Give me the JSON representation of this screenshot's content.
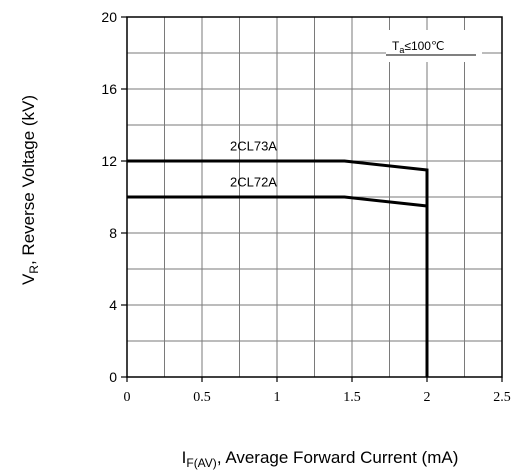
{
  "chart_data": {
    "type": "line",
    "xlim": [
      0,
      2.5
    ],
    "ylim": [
      0,
      20
    ],
    "x_ticks": [
      {
        "value": 0,
        "label": "0"
      },
      {
        "value": 0.5,
        "label": "0.5"
      },
      {
        "value": 1,
        "label": "1"
      },
      {
        "value": 1.5,
        "label": "1.5"
      },
      {
        "value": 2,
        "label": "2"
      },
      {
        "value": 2.5,
        "label": "2.5"
      }
    ],
    "y_ticks": [
      {
        "value": 0,
        "label": "0"
      },
      {
        "value": 4,
        "label": "4"
      },
      {
        "value": 8,
        "label": "8"
      },
      {
        "value": 12,
        "label": "12"
      },
      {
        "value": 16,
        "label": "16"
      },
      {
        "value": 20,
        "label": "20"
      }
    ],
    "xlabel": {
      "main": "I",
      "sub": "F(AV)",
      "rest": ", Average Forward Current (mA)"
    },
    "ylabel": {
      "main": "V",
      "sub": "R",
      "rest": ", Reverse Voltage (kV)"
    },
    "grid": true,
    "minor_grid_x": 0.25,
    "minor_grid_y": 2,
    "annotation": {
      "main": "T",
      "sub": "a",
      "rest": "≤100℃"
    },
    "series": [
      {
        "name": "2CL73A",
        "points": [
          [
            0,
            12
          ],
          [
            1.45,
            12
          ],
          [
            2,
            11.5
          ],
          [
            2,
            0
          ]
        ]
      },
      {
        "name": "2CL72A",
        "points": [
          [
            0,
            10
          ],
          [
            1.45,
            10
          ],
          [
            2,
            9.5
          ],
          [
            2,
            0
          ]
        ]
      }
    ],
    "series_label_at": [
      [
        1.0,
        12.8
      ],
      [
        1.0,
        10.8
      ]
    ]
  }
}
